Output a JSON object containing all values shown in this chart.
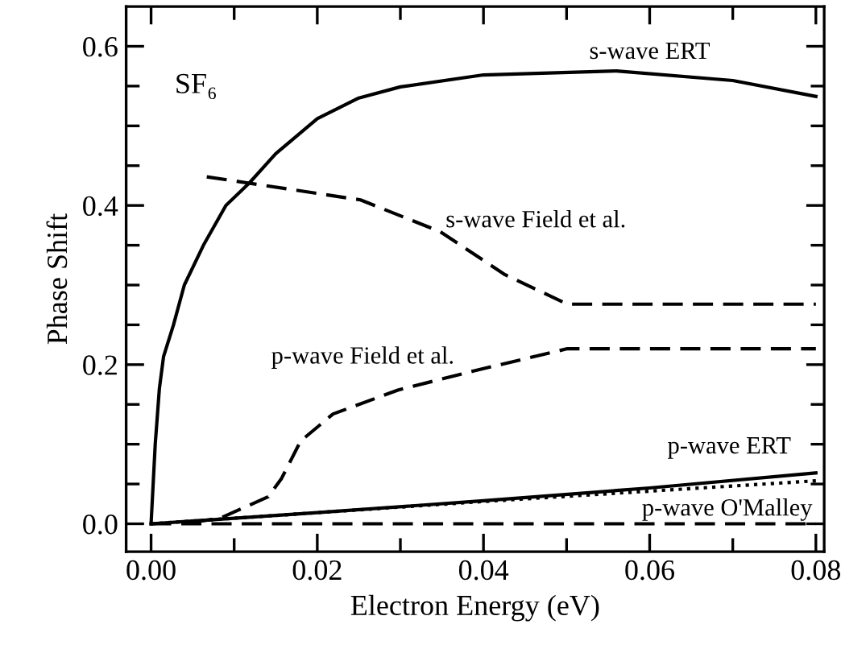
{
  "chart_data": {
    "type": "line",
    "xlabel": "Electron Energy (eV)",
    "ylabel": "Phase Shift",
    "xlim": [
      -0.003,
      0.081
    ],
    "ylim": [
      -0.035,
      0.65
    ],
    "xticks": [
      {
        "value": 0.0,
        "label": "0.00"
      },
      {
        "value": 0.01,
        "label": null
      },
      {
        "value": 0.02,
        "label": "0.02"
      },
      {
        "value": 0.03,
        "label": null
      },
      {
        "value": 0.04,
        "label": "0.04"
      },
      {
        "value": 0.05,
        "label": null
      },
      {
        "value": 0.06,
        "label": "0.06"
      },
      {
        "value": 0.07,
        "label": null
      },
      {
        "value": 0.08,
        "label": "0.08"
      }
    ],
    "yticks": [
      {
        "value": 0.0,
        "label": "0.0"
      },
      {
        "value": 0.05,
        "label": null
      },
      {
        "value": 0.1,
        "label": null
      },
      {
        "value": 0.15,
        "label": null
      },
      {
        "value": 0.2,
        "label": "0.2"
      },
      {
        "value": 0.25,
        "label": null
      },
      {
        "value": 0.3,
        "label": null
      },
      {
        "value": 0.35,
        "label": null
      },
      {
        "value": 0.4,
        "label": "0.4"
      },
      {
        "value": 0.45,
        "label": null
      },
      {
        "value": 0.5,
        "label": null
      },
      {
        "value": 0.55,
        "label": null
      },
      {
        "value": 0.6,
        "label": "0.6"
      }
    ],
    "grid": false,
    "legend": false,
    "marker": "none",
    "series": [
      {
        "color": "#000000",
        "line_style": "solid",
        "x": [
          0,
          0.0005,
          0.001,
          0.0015,
          0.0027,
          0.004,
          0.0063,
          0.009,
          0.0118,
          0.015,
          0.02,
          0.025,
          0.03,
          0.04,
          0.056,
          0.07,
          0.08
        ],
        "values": [
          0,
          0.1,
          0.17,
          0.21,
          0.25,
          0.3,
          0.35,
          0.4,
          0.428,
          0.465,
          0.509,
          0.535,
          0.549,
          0.564,
          0.569,
          0.557,
          0.537
        ]
      },
      {
        "color": "#000000",
        "line_style": "dashed",
        "x": [
          0.0067,
          0.0118,
          0.0252,
          0.0348,
          0.0426,
          0.0501,
          0.08
        ],
        "values": [
          0.436,
          0.428,
          0.407,
          0.367,
          0.313,
          0.276,
          0.276
        ]
      },
      {
        "color": "#000000",
        "line_style": "dashed",
        "x": [
          0.005,
          0.0083,
          0.0141,
          0.0157,
          0.018,
          0.0219,
          0.0297,
          0.0388,
          0.0501,
          0.08
        ],
        "values": [
          0.002,
          0.007,
          0.034,
          0.057,
          0.104,
          0.138,
          0.168,
          0.192,
          0.22,
          0.22
        ]
      },
      {
        "color": "#000000",
        "line_style": "solid",
        "x": [
          0,
          0.02,
          0.04,
          0.06,
          0.08
        ],
        "values": [
          0,
          0.014,
          0.029,
          0.045,
          0.064
        ]
      },
      {
        "color": "#000000",
        "line_style": "dotted",
        "x": [
          0,
          0.02,
          0.04,
          0.06,
          0.08
        ],
        "values": [
          0,
          0.014,
          0.028,
          0.041,
          0.054
        ]
      },
      {
        "color": "#000000",
        "line_style": "dashed",
        "x": [
          0,
          0.08
        ],
        "values": [
          0,
          0
        ]
      }
    ],
    "annotations": [
      "SF₆",
      "s-wave ERT",
      "s-wave Field et al.",
      "p-wave Field et al.",
      "p-wave ERT",
      "p-wave O'Malley"
    ]
  }
}
